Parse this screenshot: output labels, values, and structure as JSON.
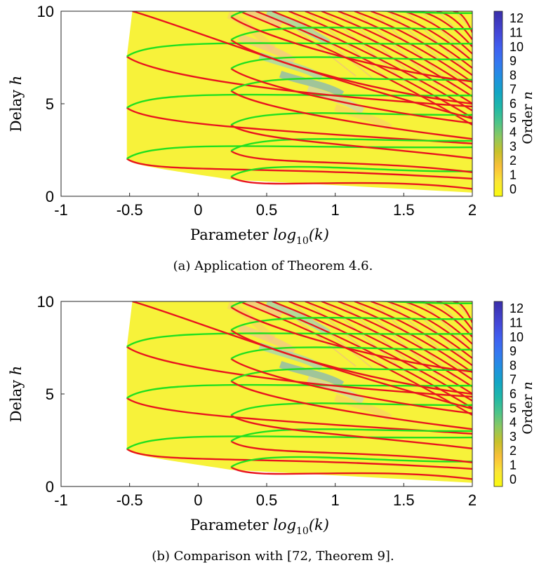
{
  "chart_data": [
    {
      "type": "heatmap",
      "caption": "(a) Application of Theorem 4.6.",
      "xlabel_prefix": "Parameter ",
      "xlabel_math": "log",
      "xlabel_sub": "10",
      "xlabel_arg": "(k)",
      "ylabel_prefix": "Delay ",
      "ylabel_math": "h",
      "xlim": [
        -1,
        2
      ],
      "ylim": [
        0,
        10
      ],
      "xticks": [
        "-1",
        "-0.5",
        "0",
        "0.5",
        "1",
        "1.5",
        "2"
      ],
      "yticks": [
        "0",
        "5",
        "10"
      ],
      "colorbar": {
        "label_prefix": "Order ",
        "label_math": "n",
        "ticks": [
          "0",
          "1",
          "2",
          "3",
          "4",
          "5",
          "6",
          "7",
          "8",
          "9",
          "10",
          "11",
          "12"
        ]
      },
      "curve_colors": {
        "lower_branch": "#e8141e",
        "upper_branch": "#1fe01f",
        "background": "#f7f23a"
      },
      "curves": [
        {
          "tip": [
            -0.52,
            2.03
          ],
          "upper_end": 2.65,
          "lower_end": 0.95
        },
        {
          "tip": [
            -0.52,
            4.78
          ],
          "upper_end": 5.45,
          "lower_end": 2.85
        },
        {
          "tip": [
            -0.52,
            7.55
          ],
          "upper_end": 8.25,
          "lower_end": 4.85
        },
        {
          "tip": [
            0.24,
            1.05
          ],
          "upper_end": 1.35,
          "lower_end": 0.4
        },
        {
          "tip": [
            0.24,
            2.45
          ],
          "upper_end": 3.0,
          "lower_end": 1.3
        },
        {
          "tip": [
            0.24,
            3.85
          ],
          "upper_end": 4.4,
          "lower_end": 2.05
        },
        {
          "tip": [
            0.24,
            5.7
          ],
          "upper_end": 6.3,
          "lower_end": 3.1
        },
        {
          "tip": [
            0.24,
            6.9
          ],
          "upper_end": 7.4,
          "lower_end": 3.95
        },
        {
          "tip": [
            0.24,
            8.45
          ],
          "upper_end": 9.05,
          "lower_end": 5.0
        },
        {
          "tip": [
            0.24,
            9.7
          ],
          "upper_end": 9.9,
          "lower_end": 6.2
        }
      ]
    },
    {
      "type": "heatmap",
      "caption": "(b) Comparison with [72, Theorem 9].",
      "xlabel_prefix": "Parameter ",
      "xlabel_math": "log",
      "xlabel_sub": "10",
      "xlabel_arg": "(k)",
      "ylabel_prefix": "Delay ",
      "ylabel_math": "h",
      "xlim": [
        -1,
        2
      ],
      "ylim": [
        0,
        10
      ],
      "xticks": [
        "-1",
        "-0.5",
        "0",
        "0.5",
        "1",
        "1.5",
        "2"
      ],
      "yticks": [
        "0",
        "5",
        "10"
      ],
      "colorbar": {
        "label_prefix": "Order ",
        "label_math": "n",
        "ticks": [
          "0",
          "1",
          "2",
          "3",
          "4",
          "5",
          "6",
          "7",
          "8",
          "9",
          "10",
          "11",
          "12"
        ]
      },
      "curve_colors": {
        "lower_branch": "#e8141e",
        "upper_branch": "#1fe01f",
        "background": "#f7f23a"
      },
      "curves": [
        {
          "tip": [
            -0.52,
            2.03
          ],
          "upper_end": 2.65,
          "lower_end": 0.95
        },
        {
          "tip": [
            -0.52,
            4.78
          ],
          "upper_end": 5.45,
          "lower_end": 2.85
        },
        {
          "tip": [
            -0.52,
            7.55
          ],
          "upper_end": 8.25,
          "lower_end": 4.85
        },
        {
          "tip": [
            0.24,
            1.05
          ],
          "upper_end": 1.35,
          "lower_end": 0.4
        },
        {
          "tip": [
            0.24,
            2.45
          ],
          "upper_end": 3.0,
          "lower_end": 1.3
        },
        {
          "tip": [
            0.24,
            3.85
          ],
          "upper_end": 4.4,
          "lower_end": 2.05
        },
        {
          "tip": [
            0.24,
            5.7
          ],
          "upper_end": 6.3,
          "lower_end": 3.1
        },
        {
          "tip": [
            0.24,
            6.9
          ],
          "upper_end": 7.4,
          "lower_end": 3.95
        },
        {
          "tip": [
            0.24,
            8.45
          ],
          "upper_end": 9.05,
          "lower_end": 5.0
        },
        {
          "tip": [
            0.24,
            9.7
          ],
          "upper_end": 9.9,
          "lower_end": 6.2
        }
      ]
    }
  ]
}
